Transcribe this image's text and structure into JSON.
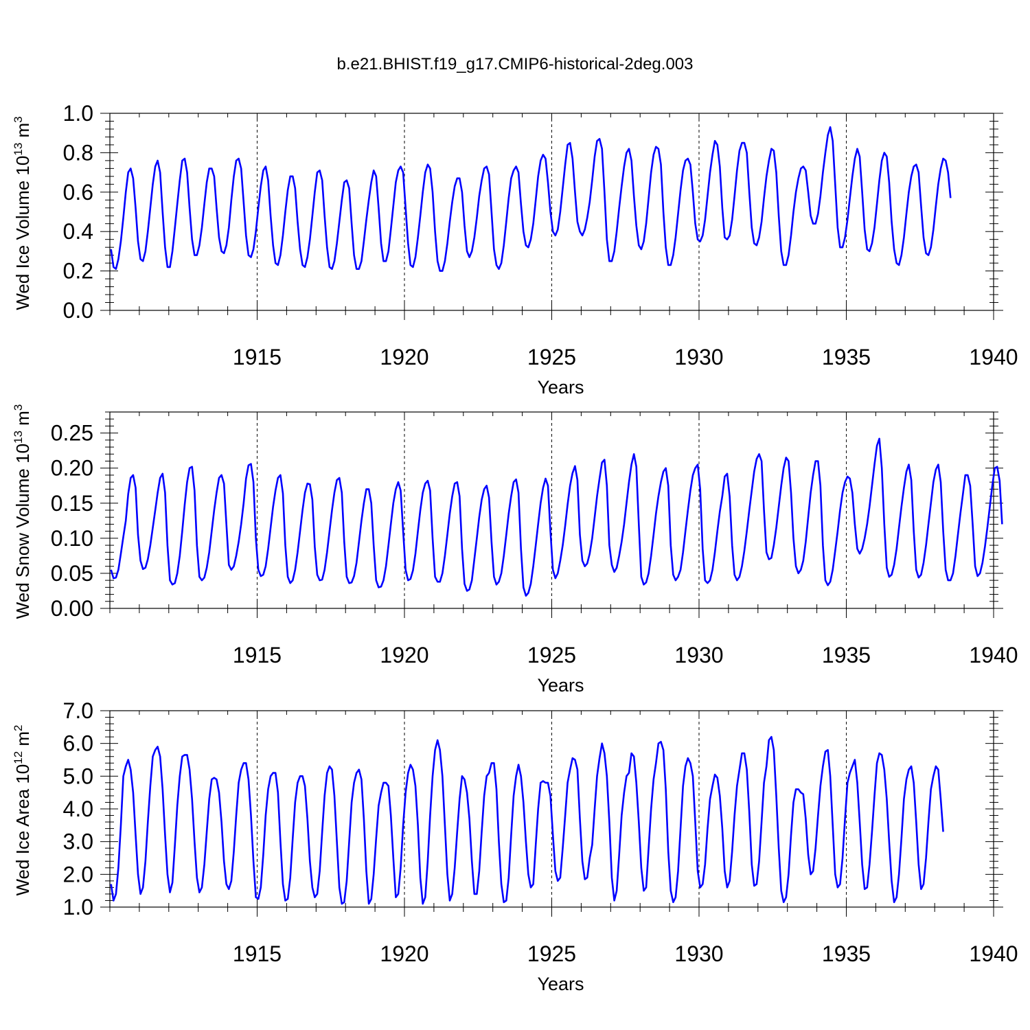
{
  "figure_title": "b.e21.BHIST.f19_g17.CMIP6-historical-2deg.003",
  "line_color": "#0000ff",
  "chart_data": [
    {
      "type": "line",
      "name": "ice-volume",
      "ylabel": "Wed Ice Volume 10",
      "ylabel_exp": "13",
      "ylabel_unit": " m",
      "ylabel_unit_exp": "3",
      "xlabel": "Years",
      "x_start": 1910.04,
      "x_step": 0.08333,
      "xlim": [
        1910.0,
        1940.0
      ],
      "ylim": [
        0.0,
        1.0
      ],
      "yticks": [
        0.0,
        0.2,
        0.4,
        0.6,
        0.8,
        1.0
      ],
      "ytick_labels": [
        "0.0",
        "0.2",
        "0.4",
        "0.6",
        "0.8",
        "1.0"
      ],
      "xticks": [
        1915,
        1920,
        1925,
        1930,
        1935,
        1940
      ],
      "xtick_labels": [
        "1915",
        "1920",
        "1925",
        "1930",
        "1935",
        "1940"
      ],
      "grid_x": [
        1915,
        1920,
        1925,
        1930,
        1935
      ],
      "values": [
        0.31,
        0.22,
        0.21,
        0.26,
        0.35,
        0.47,
        0.6,
        0.7,
        0.72,
        0.67,
        0.52,
        0.35,
        0.26,
        0.25,
        0.3,
        0.4,
        0.52,
        0.64,
        0.73,
        0.76,
        0.7,
        0.5,
        0.32,
        0.22,
        0.22,
        0.3,
        0.42,
        0.54,
        0.66,
        0.76,
        0.77,
        0.7,
        0.52,
        0.36,
        0.28,
        0.28,
        0.33,
        0.42,
        0.54,
        0.65,
        0.72,
        0.72,
        0.68,
        0.52,
        0.37,
        0.3,
        0.29,
        0.33,
        0.42,
        0.56,
        0.68,
        0.76,
        0.77,
        0.72,
        0.55,
        0.38,
        0.28,
        0.27,
        0.31,
        0.4,
        0.52,
        0.63,
        0.71,
        0.73,
        0.66,
        0.48,
        0.33,
        0.24,
        0.23,
        0.28,
        0.38,
        0.5,
        0.61,
        0.68,
        0.68,
        0.62,
        0.45,
        0.31,
        0.23,
        0.22,
        0.27,
        0.36,
        0.48,
        0.6,
        0.7,
        0.71,
        0.66,
        0.48,
        0.32,
        0.22,
        0.21,
        0.25,
        0.34,
        0.45,
        0.56,
        0.65,
        0.66,
        0.62,
        0.44,
        0.28,
        0.21,
        0.21,
        0.25,
        0.35,
        0.46,
        0.56,
        0.65,
        0.71,
        0.68,
        0.52,
        0.34,
        0.25,
        0.25,
        0.3,
        0.41,
        0.53,
        0.65,
        0.71,
        0.73,
        0.7,
        0.52,
        0.34,
        0.23,
        0.22,
        0.27,
        0.37,
        0.48,
        0.6,
        0.7,
        0.74,
        0.72,
        0.6,
        0.4,
        0.25,
        0.2,
        0.2,
        0.25,
        0.34,
        0.45,
        0.55,
        0.63,
        0.67,
        0.67,
        0.6,
        0.43,
        0.3,
        0.27,
        0.3,
        0.37,
        0.47,
        0.58,
        0.66,
        0.72,
        0.73,
        0.69,
        0.5,
        0.31,
        0.23,
        0.21,
        0.24,
        0.33,
        0.45,
        0.57,
        0.67,
        0.71,
        0.73,
        0.7,
        0.54,
        0.4,
        0.33,
        0.32,
        0.36,
        0.44,
        0.56,
        0.68,
        0.76,
        0.79,
        0.77,
        0.65,
        0.5,
        0.4,
        0.38,
        0.41,
        0.5,
        0.62,
        0.74,
        0.84,
        0.85,
        0.77,
        0.6,
        0.45,
        0.4,
        0.38,
        0.41,
        0.47,
        0.55,
        0.66,
        0.78,
        0.86,
        0.87,
        0.82,
        0.6,
        0.36,
        0.25,
        0.25,
        0.3,
        0.4,
        0.52,
        0.63,
        0.73,
        0.8,
        0.82,
        0.76,
        0.58,
        0.43,
        0.33,
        0.31,
        0.35,
        0.44,
        0.57,
        0.7,
        0.79,
        0.83,
        0.82,
        0.74,
        0.5,
        0.32,
        0.23,
        0.23,
        0.28,
        0.37,
        0.49,
        0.61,
        0.71,
        0.76,
        0.77,
        0.74,
        0.6,
        0.44,
        0.36,
        0.35,
        0.38,
        0.46,
        0.58,
        0.7,
        0.79,
        0.86,
        0.84,
        0.73,
        0.52,
        0.37,
        0.36,
        0.38,
        0.46,
        0.58,
        0.71,
        0.81,
        0.85,
        0.85,
        0.8,
        0.6,
        0.42,
        0.34,
        0.33,
        0.37,
        0.45,
        0.57,
        0.68,
        0.76,
        0.82,
        0.81,
        0.7,
        0.48,
        0.3,
        0.23,
        0.23,
        0.28,
        0.38,
        0.5,
        0.6,
        0.67,
        0.72,
        0.73,
        0.71,
        0.6,
        0.48,
        0.44,
        0.44,
        0.49,
        0.58,
        0.7,
        0.8,
        0.89,
        0.93,
        0.86,
        0.64,
        0.42,
        0.32,
        0.32,
        0.37,
        0.46,
        0.57,
        0.68,
        0.77,
        0.82,
        0.78,
        0.6,
        0.41,
        0.31,
        0.3,
        0.34,
        0.42,
        0.54,
        0.66,
        0.76,
        0.8,
        0.78,
        0.65,
        0.45,
        0.31,
        0.24,
        0.23,
        0.28,
        0.37,
        0.49,
        0.6,
        0.68,
        0.73,
        0.74,
        0.7,
        0.53,
        0.37,
        0.29,
        0.28,
        0.32,
        0.41,
        0.53,
        0.64,
        0.72,
        0.77,
        0.76,
        0.7,
        0.57
      ]
    },
    {
      "type": "line",
      "name": "snow-volume",
      "ylabel": "Wed Snow Volume 10",
      "ylabel_exp": "13",
      "ylabel_unit": " m",
      "ylabel_unit_exp": "3",
      "xlabel": "Years",
      "x_start": 1910.04,
      "x_step": 0.08333,
      "xlim": [
        1910.0,
        1940.0
      ],
      "ylim": [
        0.0,
        0.28
      ],
      "yticks": [
        0.0,
        0.05,
        0.1,
        0.15,
        0.2,
        0.25
      ],
      "ytick_labels": [
        "0.00",
        "0.05",
        "0.10",
        "0.15",
        "0.20",
        "0.25"
      ],
      "xticks": [
        1915,
        1920,
        1925,
        1930,
        1935,
        1940
      ],
      "xtick_labels": [
        "1915",
        "1920",
        "1925",
        "1930",
        "1935",
        "1940"
      ],
      "grid_x": [
        1915,
        1920,
        1925,
        1930,
        1935
      ],
      "values": [
        0.055,
        0.043,
        0.044,
        0.055,
        0.078,
        0.102,
        0.125,
        0.163,
        0.186,
        0.19,
        0.172,
        0.105,
        0.068,
        0.056,
        0.058,
        0.07,
        0.09,
        0.115,
        0.14,
        0.165,
        0.186,
        0.192,
        0.165,
        0.09,
        0.04,
        0.034,
        0.036,
        0.05,
        0.075,
        0.11,
        0.148,
        0.18,
        0.2,
        0.202,
        0.168,
        0.09,
        0.045,
        0.04,
        0.044,
        0.058,
        0.08,
        0.11,
        0.14,
        0.165,
        0.186,
        0.19,
        0.178,
        0.12,
        0.062,
        0.055,
        0.06,
        0.075,
        0.095,
        0.12,
        0.15,
        0.185,
        0.204,
        0.206,
        0.18,
        0.1,
        0.055,
        0.046,
        0.048,
        0.06,
        0.085,
        0.115,
        0.145,
        0.168,
        0.186,
        0.19,
        0.164,
        0.09,
        0.045,
        0.036,
        0.04,
        0.055,
        0.08,
        0.11,
        0.14,
        0.165,
        0.178,
        0.177,
        0.155,
        0.088,
        0.048,
        0.04,
        0.041,
        0.055,
        0.08,
        0.11,
        0.14,
        0.165,
        0.183,
        0.186,
        0.165,
        0.095,
        0.045,
        0.036,
        0.037,
        0.046,
        0.065,
        0.095,
        0.125,
        0.15,
        0.17,
        0.17,
        0.15,
        0.09,
        0.04,
        0.03,
        0.031,
        0.04,
        0.06,
        0.09,
        0.12,
        0.15,
        0.17,
        0.18,
        0.168,
        0.11,
        0.055,
        0.04,
        0.042,
        0.054,
        0.078,
        0.11,
        0.14,
        0.165,
        0.178,
        0.182,
        0.168,
        0.1,
        0.045,
        0.038,
        0.038,
        0.05,
        0.075,
        0.105,
        0.135,
        0.16,
        0.178,
        0.18,
        0.16,
        0.085,
        0.035,
        0.025,
        0.027,
        0.04,
        0.07,
        0.1,
        0.13,
        0.155,
        0.17,
        0.175,
        0.158,
        0.095,
        0.045,
        0.034,
        0.038,
        0.05,
        0.075,
        0.105,
        0.135,
        0.16,
        0.18,
        0.184,
        0.165,
        0.085,
        0.03,
        0.018,
        0.022,
        0.035,
        0.06,
        0.09,
        0.12,
        0.15,
        0.172,
        0.185,
        0.175,
        0.11,
        0.055,
        0.043,
        0.05,
        0.068,
        0.09,
        0.118,
        0.148,
        0.175,
        0.193,
        0.203,
        0.183,
        0.105,
        0.068,
        0.06,
        0.064,
        0.078,
        0.1,
        0.13,
        0.16,
        0.185,
        0.208,
        0.212,
        0.175,
        0.09,
        0.062,
        0.052,
        0.058,
        0.075,
        0.095,
        0.12,
        0.15,
        0.18,
        0.205,
        0.22,
        0.202,
        0.12,
        0.045,
        0.034,
        0.037,
        0.05,
        0.075,
        0.105,
        0.135,
        0.16,
        0.18,
        0.195,
        0.2,
        0.175,
        0.09,
        0.048,
        0.04,
        0.045,
        0.055,
        0.08,
        0.11,
        0.14,
        0.168,
        0.19,
        0.2,
        0.205,
        0.17,
        0.085,
        0.04,
        0.036,
        0.04,
        0.055,
        0.08,
        0.11,
        0.138,
        0.16,
        0.188,
        0.192,
        0.16,
        0.09,
        0.048,
        0.04,
        0.045,
        0.06,
        0.082,
        0.11,
        0.14,
        0.168,
        0.195,
        0.213,
        0.22,
        0.21,
        0.14,
        0.08,
        0.07,
        0.072,
        0.09,
        0.115,
        0.145,
        0.175,
        0.2,
        0.215,
        0.21,
        0.165,
        0.1,
        0.06,
        0.05,
        0.055,
        0.068,
        0.095,
        0.13,
        0.165,
        0.19,
        0.21,
        0.21,
        0.175,
        0.09,
        0.04,
        0.033,
        0.038,
        0.055,
        0.082,
        0.11,
        0.14,
        0.165,
        0.18,
        0.188,
        0.185,
        0.165,
        0.12,
        0.085,
        0.078,
        0.085,
        0.1,
        0.12,
        0.145,
        0.175,
        0.205,
        0.232,
        0.242,
        0.2,
        0.12,
        0.058,
        0.045,
        0.048,
        0.062,
        0.085,
        0.115,
        0.145,
        0.172,
        0.195,
        0.205,
        0.183,
        0.11,
        0.055,
        0.044,
        0.048,
        0.065,
        0.09,
        0.12,
        0.15,
        0.18,
        0.198,
        0.205,
        0.18,
        0.11,
        0.055,
        0.04,
        0.04,
        0.05,
        0.075,
        0.105,
        0.135,
        0.162,
        0.19,
        0.19,
        0.175,
        0.12,
        0.06,
        0.046,
        0.05,
        0.065,
        0.088,
        0.115,
        0.145,
        0.175,
        0.2,
        0.202,
        0.182,
        0.12
      ]
    },
    {
      "type": "line",
      "name": "ice-area",
      "ylabel": "Wed Ice Area 10",
      "ylabel_exp": "12",
      "ylabel_unit": " m",
      "ylabel_unit_exp": "2",
      "xlabel": "Years",
      "x_start": 1910.04,
      "x_step": 0.08333,
      "xlim": [
        1910.0,
        1940.0
      ],
      "ylim": [
        1.0,
        7.0
      ],
      "yticks": [
        1.0,
        2.0,
        3.0,
        4.0,
        5.0,
        6.0,
        7.0
      ],
      "ytick_labels": [
        "1.0",
        "2.0",
        "3.0",
        "4.0",
        "5.0",
        "6.0",
        "7.0"
      ],
      "xticks": [
        1915,
        1920,
        1925,
        1930,
        1935,
        1940
      ],
      "xtick_labels": [
        "1915",
        "1920",
        "1925",
        "1930",
        "1935",
        "1940"
      ],
      "grid_x": [
        1915,
        1920,
        1925,
        1930,
        1935
      ],
      "values": [
        1.7,
        1.2,
        1.4,
        2.2,
        3.5,
        5.0,
        5.3,
        5.5,
        5.2,
        4.5,
        3.2,
        2.0,
        1.4,
        1.6,
        2.4,
        3.6,
        4.7,
        5.6,
        5.8,
        5.9,
        5.6,
        4.6,
        3.2,
        2.0,
        1.45,
        1.75,
        2.9,
        4.1,
        5.0,
        5.6,
        5.65,
        5.65,
        5.2,
        4.3,
        3.0,
        1.9,
        1.45,
        1.6,
        2.3,
        3.3,
        4.3,
        4.9,
        4.95,
        4.9,
        4.5,
        3.6,
        2.4,
        1.7,
        1.55,
        1.8,
        2.7,
        3.8,
        4.8,
        5.2,
        5.4,
        5.4,
        4.9,
        3.8,
        2.4,
        1.3,
        1.25,
        1.6,
        2.6,
        3.8,
        4.6,
        5.0,
        5.1,
        5.1,
        4.5,
        3.0,
        1.7,
        1.2,
        1.25,
        1.9,
        3.1,
        4.2,
        4.8,
        5.0,
        5.0,
        4.7,
        3.7,
        2.4,
        1.6,
        1.3,
        1.4,
        2.1,
        3.3,
        4.4,
        5.1,
        5.3,
        5.2,
        4.4,
        3.0,
        1.6,
        1.1,
        1.15,
        1.8,
        3.0,
        4.2,
        4.8,
        5.1,
        5.2,
        4.9,
        3.7,
        2.1,
        1.1,
        1.25,
        2.0,
        3.1,
        4.1,
        4.5,
        4.8,
        4.8,
        4.7,
        3.8,
        2.5,
        1.3,
        1.4,
        2.2,
        3.5,
        4.5,
        5.1,
        5.35,
        5.2,
        4.7,
        3.5,
        1.9,
        1.1,
        1.3,
        2.4,
        3.8,
        5.0,
        5.8,
        6.1,
        5.8,
        5.0,
        3.5,
        2.0,
        1.2,
        1.4,
        2.2,
        3.3,
        4.3,
        5.0,
        4.9,
        4.5,
        3.7,
        2.4,
        1.4,
        1.4,
        2.1,
        3.3,
        4.4,
        5.0,
        5.1,
        5.4,
        5.4,
        4.6,
        3.0,
        1.7,
        1.15,
        1.2,
        1.9,
        3.2,
        4.4,
        5.0,
        5.35,
        5.0,
        4.2,
        3.0,
        2.0,
        1.6,
        1.7,
        2.9,
        4.0,
        4.8,
        4.85,
        4.8,
        4.8,
        4.4,
        3.2,
        2.1,
        1.8,
        1.9,
        2.8,
        3.8,
        4.8,
        5.2,
        5.55,
        5.5,
        5.2,
        3.7,
        2.4,
        1.85,
        1.9,
        2.5,
        2.9,
        4.0,
        5.0,
        5.55,
        6.0,
        5.7,
        5.0,
        3.6,
        1.9,
        1.2,
        1.5,
        2.6,
        3.8,
        4.5,
        5.0,
        5.1,
        5.7,
        5.6,
        4.8,
        3.6,
        2.2,
        1.5,
        1.6,
        2.8,
        4.0,
        4.9,
        5.4,
        6.0,
        6.05,
        5.8,
        4.6,
        2.7,
        1.5,
        1.15,
        1.3,
        2.1,
        3.4,
        4.7,
        5.3,
        5.55,
        5.4,
        5.0,
        3.6,
        2.1,
        1.6,
        1.7,
        2.3,
        3.4,
        4.3,
        4.7,
        5.05,
        4.95,
        4.4,
        3.4,
        2.1,
        1.6,
        1.8,
        2.7,
        3.8,
        4.7,
        5.2,
        5.7,
        5.7,
        5.2,
        3.9,
        2.3,
        1.65,
        1.7,
        2.4,
        3.6,
        4.8,
        5.3,
        6.1,
        6.2,
        5.8,
        4.4,
        2.8,
        1.5,
        1.15,
        1.3,
        2.0,
        3.2,
        4.2,
        4.6,
        4.6,
        4.5,
        4.45,
        3.7,
        2.6,
        2.0,
        2.1,
        2.8,
        3.8,
        4.7,
        5.3,
        5.75,
        5.8,
        5.0,
        3.5,
        2.0,
        1.6,
        1.7,
        2.5,
        3.7,
        4.8,
        5.1,
        5.3,
        5.5,
        4.8,
        3.6,
        2.3,
        1.55,
        1.6,
        2.3,
        3.3,
        4.4,
        5.4,
        5.7,
        5.65,
        5.2,
        4.3,
        3.0,
        1.8,
        1.15,
        1.3,
        2.0,
        3.1,
        4.3,
        4.9,
        5.2,
        5.3,
        4.8,
        3.6,
        2.3,
        1.55,
        1.7,
        2.5,
        3.6,
        4.6,
        5.0,
        5.3,
        5.2,
        4.3,
        3.3
      ]
    }
  ]
}
